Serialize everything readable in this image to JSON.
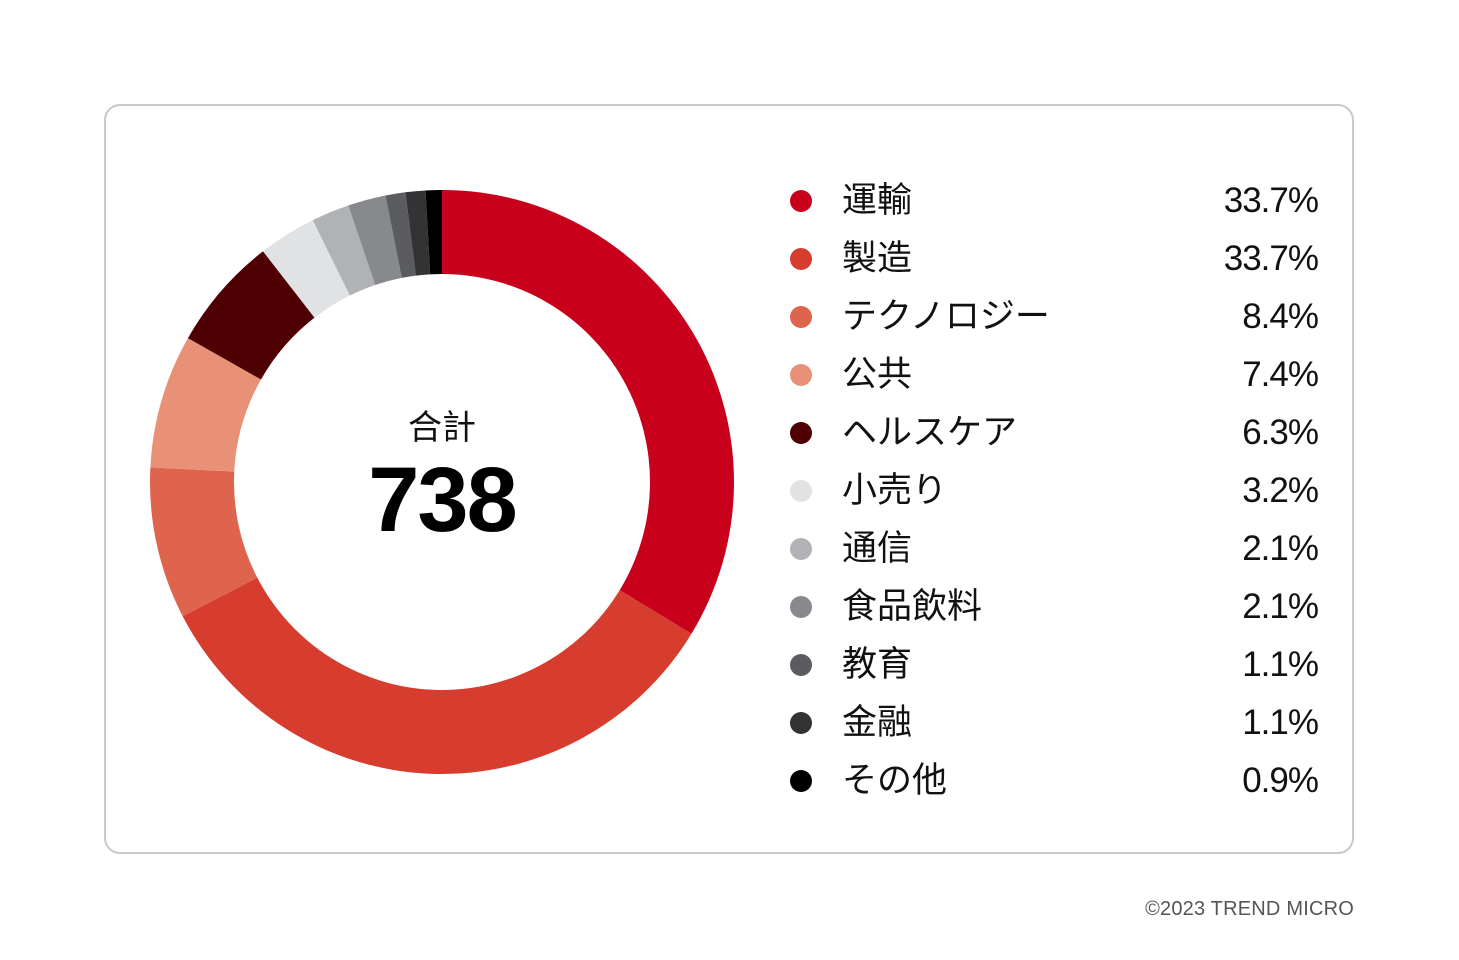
{
  "chart_data": {
    "type": "pie",
    "variant": "donut",
    "center_label": "合計",
    "center_value": "738",
    "categories": [
      "運輸",
      "製造",
      "テクノロジー",
      "公共",
      "ヘルスケア",
      "小売り",
      "通信",
      "食品飲料",
      "教育",
      "金融",
      "その他"
    ],
    "values": [
      33.7,
      33.7,
      8.4,
      7.4,
      6.3,
      3.2,
      2.1,
      2.1,
      1.1,
      1.1,
      0.9
    ],
    "value_labels": [
      "33.7%",
      "33.7%",
      "8.4%",
      "7.4%",
      "6.3%",
      "3.2%",
      "2.1%",
      "2.1%",
      "1.1%",
      "1.1%",
      "0.9%"
    ],
    "colors": [
      "#c8001c",
      "#d63d2e",
      "#df644e",
      "#e89176",
      "#4e0003",
      "#e1e2e4",
      "#b1b2b5",
      "#88898c",
      "#5b5c60",
      "#333336",
      "#000000"
    ],
    "legend_position": "right"
  },
  "footer": {
    "copyright": "©2023 TREND MICRO"
  }
}
